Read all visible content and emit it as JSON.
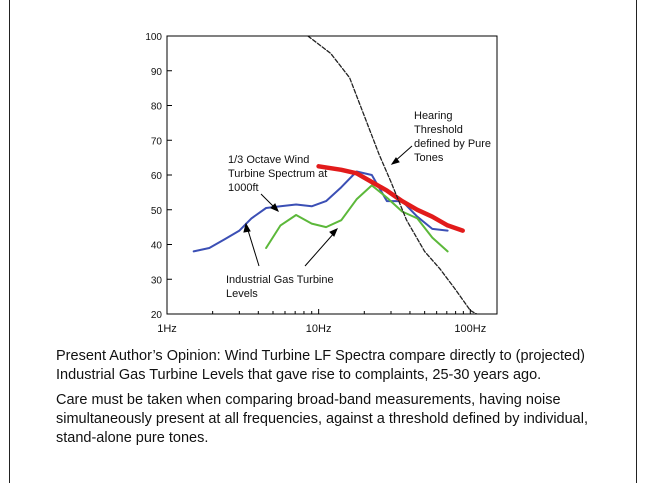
{
  "chart_data": {
    "type": "line",
    "xscale": "log",
    "xlim": [
      1,
      150
    ],
    "ylim": [
      20,
      100
    ],
    "xticks": [
      "1Hz",
      "10Hz",
      "100Hz"
    ],
    "yticks": [
      "20",
      "30",
      "40",
      "50",
      "60",
      "70",
      "80",
      "90",
      "100"
    ],
    "series": [
      {
        "key": "blue",
        "color": "#3b4fb5",
        "width": 2,
        "dash": "",
        "points": [
          [
            1.5,
            38
          ],
          [
            1.9,
            39
          ],
          [
            2.4,
            41.5
          ],
          [
            3.0,
            44
          ],
          [
            3.6,
            47.5
          ],
          [
            4.5,
            50.5
          ],
          [
            5.6,
            51
          ],
          [
            7.1,
            51.5
          ],
          [
            9.0,
            51
          ],
          [
            11.2,
            52.5
          ],
          [
            14.1,
            56.5
          ],
          [
            17.8,
            61
          ],
          [
            22.4,
            60
          ],
          [
            28.2,
            52.5
          ],
          [
            35.5,
            52.5
          ],
          [
            44.7,
            48
          ],
          [
            56.2,
            44.5
          ],
          [
            70.8,
            44
          ]
        ]
      },
      {
        "key": "green",
        "color": "#5cb83a",
        "width": 2,
        "dash": "",
        "points": [
          [
            4.5,
            39
          ],
          [
            5.6,
            45.5
          ],
          [
            7.1,
            48.5
          ],
          [
            9.0,
            46
          ],
          [
            11.2,
            45
          ],
          [
            14.1,
            47
          ],
          [
            17.8,
            53
          ],
          [
            22.4,
            57
          ],
          [
            28.2,
            53.5
          ],
          [
            35.5,
            49.5
          ],
          [
            44.7,
            47.5
          ],
          [
            56.2,
            42
          ],
          [
            70.8,
            38
          ]
        ]
      },
      {
        "key": "red",
        "color": "#e21b1b",
        "width": 4.5,
        "dash": "",
        "points": [
          [
            10,
            62.5
          ],
          [
            14.1,
            61.5
          ],
          [
            17.8,
            60.5
          ],
          [
            22.4,
            58
          ],
          [
            28.2,
            55.5
          ],
          [
            35.5,
            52.5
          ],
          [
            44.7,
            50
          ],
          [
            56.2,
            48
          ],
          [
            70.8,
            45.5
          ],
          [
            89.1,
            44
          ]
        ]
      },
      {
        "key": "black",
        "color": "#222222",
        "width": 1.3,
        "dash": "4,2",
        "points": [
          [
            8.5,
            100
          ],
          [
            12,
            95
          ],
          [
            16,
            88
          ],
          [
            20,
            77
          ],
          [
            25,
            66
          ],
          [
            30,
            58
          ],
          [
            38,
            47
          ],
          [
            50,
            38
          ],
          [
            63,
            33
          ],
          [
            80,
            27
          ],
          [
            100,
            21
          ],
          [
            110,
            20
          ]
        ]
      }
    ],
    "annotations": {
      "hearing": [
        "Hearing",
        "Threshold",
        "defined by Pure",
        "Tones"
      ],
      "wind": [
        "1/3 Octave Wind",
        "Turbine Spectrum at",
        "1000ft"
      ],
      "gas": [
        "Industrial Gas Turbine",
        "Levels"
      ]
    }
  },
  "text": {
    "p1": "Present Author’s Opinion:   Wind Turbine LF Spectra compare directly to (projected) Industrial Gas Turbine  Levels that gave rise to complaints, 25-30 years ago.",
    "p2": "Care must be taken when comparing broad-band measurements, having noise simultaneously present at all frequencies, against a threshold defined by individual, stand-alone pure tones."
  }
}
